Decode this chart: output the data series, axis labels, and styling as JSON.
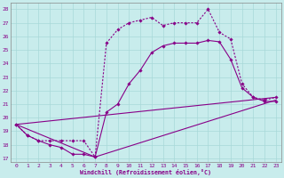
{
  "xlabel": "Windchill (Refroidissement éolien,°C)",
  "bg_color": "#c8ecec",
  "line_color": "#880088",
  "grid_color": "#a8d8d8",
  "xmin": 0,
  "xmax": 23,
  "ymin": 17,
  "ymax": 28,
  "line1_x": [
    0,
    1,
    2,
    3,
    4,
    5,
    6,
    7,
    8,
    9,
    10,
    11,
    12,
    13,
    14,
    15,
    16,
    17,
    18,
    19,
    20,
    21,
    22,
    23
  ],
  "line1_y": [
    19.5,
    18.7,
    18.3,
    18.0,
    17.8,
    17.3,
    17.3,
    17.1,
    20.4,
    21.0,
    22.5,
    23.5,
    24.8,
    25.3,
    25.5,
    25.5,
    25.5,
    25.7,
    25.6,
    24.3,
    22.2,
    21.5,
    21.2,
    21.2
  ],
  "line2_x": [
    0,
    1,
    2,
    3,
    4,
    5,
    6,
    7,
    8,
    9,
    10,
    11,
    12,
    13,
    14,
    15,
    16,
    17,
    18,
    19,
    20,
    21,
    22,
    23
  ],
  "line2_y": [
    19.5,
    18.7,
    18.3,
    18.3,
    18.3,
    18.3,
    18.3,
    17.1,
    25.5,
    26.5,
    27.0,
    27.2,
    27.4,
    26.8,
    27.0,
    27.0,
    27.0,
    28.0,
    26.3,
    25.8,
    22.5,
    21.5,
    21.3,
    21.5
  ],
  "line3_x": [
    0,
    7,
    23
  ],
  "line3_y": [
    19.5,
    17.1,
    21.3
  ],
  "line4_x": [
    0,
    23
  ],
  "line4_y": [
    19.5,
    21.5
  ],
  "xticks": [
    0,
    1,
    2,
    3,
    4,
    5,
    6,
    7,
    8,
    9,
    10,
    11,
    12,
    13,
    14,
    15,
    16,
    17,
    18,
    19,
    20,
    21,
    22,
    23
  ],
  "yticks": [
    17,
    18,
    19,
    20,
    21,
    22,
    23,
    24,
    25,
    26,
    27,
    28
  ]
}
